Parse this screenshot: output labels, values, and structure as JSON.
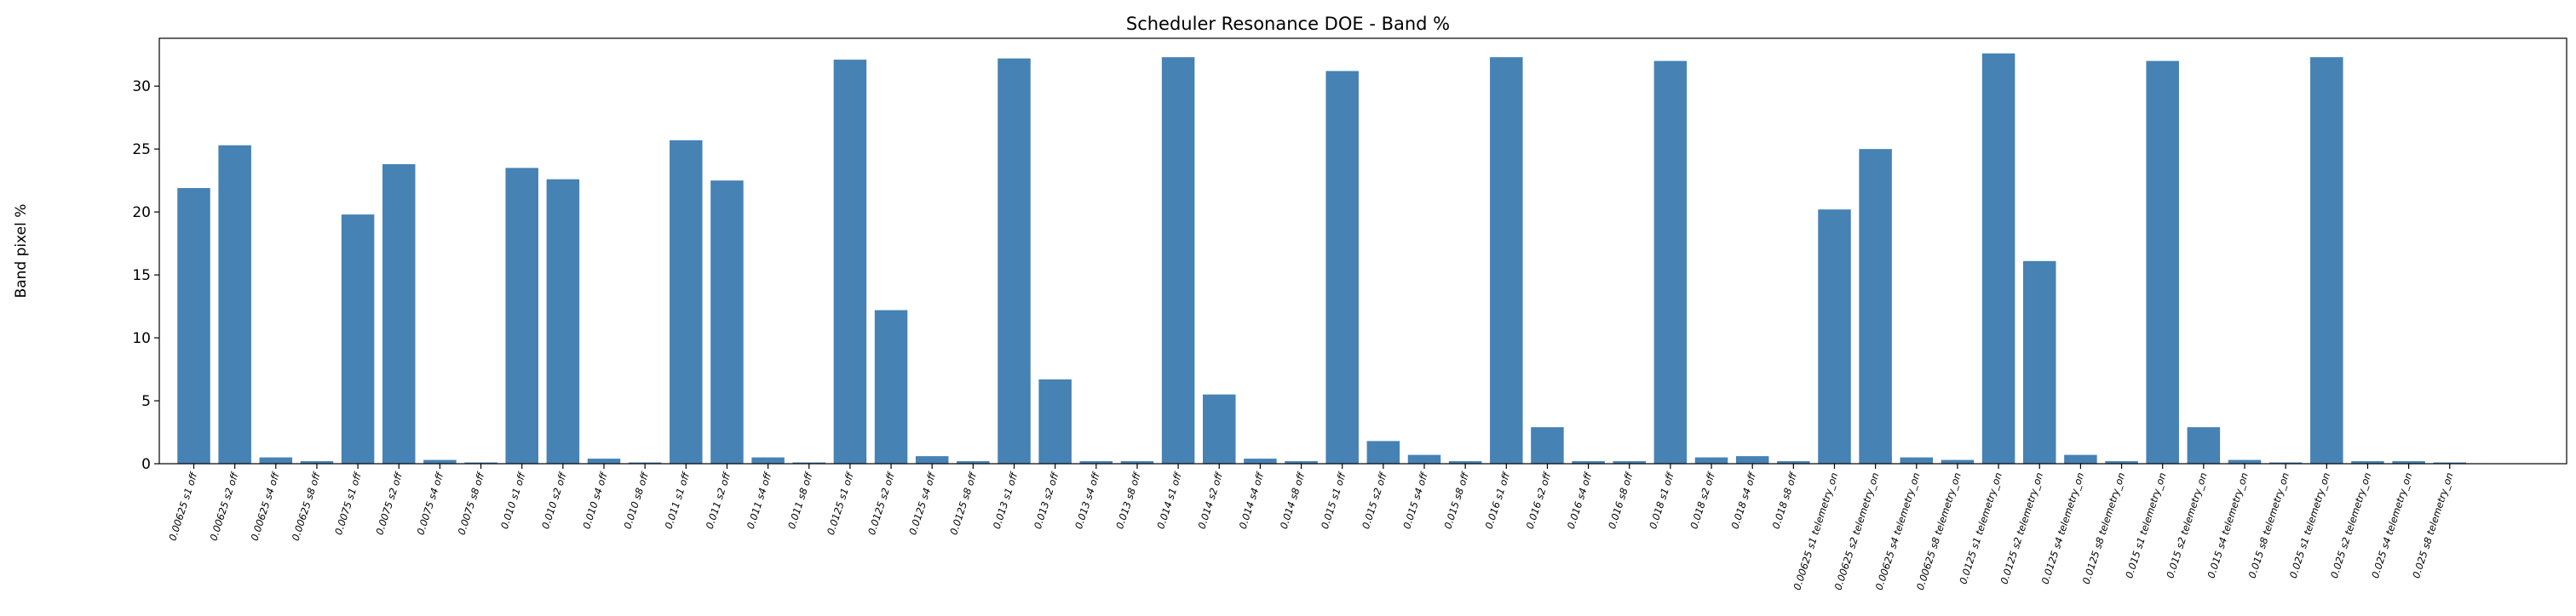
{
  "chart_data": {
    "type": "bar",
    "title": "Scheduler Resonance DOE - Band %",
    "xlabel": "",
    "ylabel": "Band pixel %",
    "ylim": [
      0,
      33.8
    ],
    "yticks": [
      0,
      5,
      10,
      15,
      20,
      25,
      30
    ],
    "grid": false,
    "bar_color": "#4682b4",
    "categories": [
      "0.00625 s1 off",
      "0.00625 s2 off",
      "0.00625 s4 off",
      "0.00625 s8 off",
      "0.0075 s1 off",
      "0.0075 s2 off",
      "0.0075 s4 off",
      "0.0075 s8 off",
      "0.010 s1 off",
      "0.010 s2 off",
      "0.010 s4 off",
      "0.010 s8 off",
      "0.011 s1 off",
      "0.011 s2 off",
      "0.011 s4 off",
      "0.011 s8 off",
      "0.0125 s1 off",
      "0.0125 s2 off",
      "0.0125 s4 off",
      "0.0125 s8 off",
      "0.013 s1 off",
      "0.013 s2 off",
      "0.013 s4 off",
      "0.013 s8 off",
      "0.014 s1 off",
      "0.014 s2 off",
      "0.014 s4 off",
      "0.014 s8 off",
      "0.015 s1 off",
      "0.015 s2 off",
      "0.015 s4 off",
      "0.015 s8 off",
      "0.016 s1 off",
      "0.016 s2 off",
      "0.016 s4 off",
      "0.016 s8 off",
      "0.018 s1 off",
      "0.018 s2 off",
      "0.018 s4 off",
      "0.018 s8 off",
      "0.00625 s1 telemetry_on",
      "0.00625 s2 telemetry_on",
      "0.00625 s4 telemetry_on",
      "0.00625 s8 telemetry_on",
      "0.0125 s1 telemetry_on",
      "0.0125 s2 telemetry_on",
      "0.0125 s4 telemetry_on",
      "0.0125 s8 telemetry_on",
      "0.015 s1 telemetry_on",
      "0.015 s2 telemetry_on",
      "0.015 s4 telemetry_on",
      "0.015 s8 telemetry_on",
      "0.025 s1 telemetry_on",
      "0.025 s2 telemetry_on",
      "0.025 s4 telemetry_on",
      "0.025 s8 telemetry_on"
    ],
    "values": [
      21.9,
      25.3,
      0.5,
      0.2,
      19.8,
      23.8,
      0.3,
      0.1,
      23.5,
      22.6,
      0.4,
      0.1,
      25.7,
      22.5,
      0.5,
      0.1,
      32.1,
      12.2,
      0.6,
      0.2,
      32.2,
      6.7,
      0.2,
      0.2,
      32.3,
      5.5,
      0.4,
      0.2,
      31.2,
      1.8,
      0.7,
      0.2,
      32.3,
      2.9,
      0.2,
      0.2,
      32.0,
      0.5,
      0.6,
      0.2,
      20.2,
      25.0,
      0.5,
      0.3,
      32.6,
      16.1,
      0.7,
      0.2,
      32.0,
      2.9,
      0.3,
      0.1,
      32.3,
      0.2,
      0.2,
      0.1
    ]
  }
}
